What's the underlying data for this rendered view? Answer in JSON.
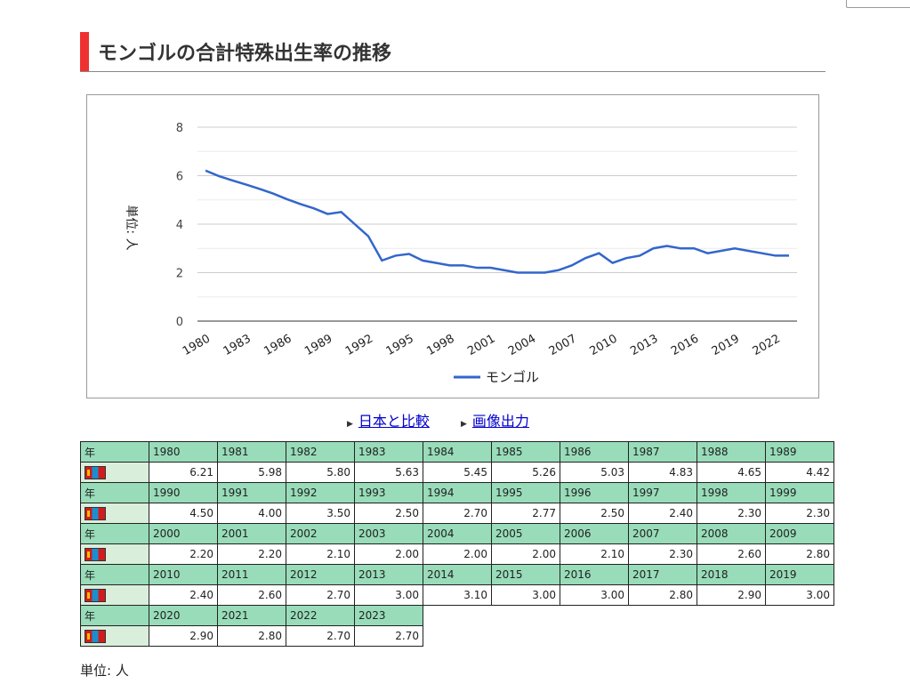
{
  "title": "モンゴルの合計特殊出生率の推移",
  "links": {
    "compare": "日本と比較",
    "export": "画像出力"
  },
  "table": {
    "year_label": "年",
    "country_icon": "mongolia-flag-icon"
  },
  "unit": "単位: 人",
  "colors": {
    "line": "#3366cc",
    "header": "#98dcb9",
    "accent": "#f03030"
  },
  "chart_data": {
    "type": "line",
    "title": "",
    "ylabel": "単位: 人",
    "xlabel": "",
    "ylim": [
      0,
      8
    ],
    "yticks": [
      "0",
      "2",
      "4",
      "6",
      "8"
    ],
    "xticks": [
      "1980",
      "1983",
      "1986",
      "1989",
      "1992",
      "1995",
      "1998",
      "2001",
      "2004",
      "2007",
      "2010",
      "2013",
      "2016",
      "2019",
      "2022"
    ],
    "legend": "bottom",
    "x": [
      1980,
      1981,
      1982,
      1983,
      1984,
      1985,
      1986,
      1987,
      1988,
      1989,
      1990,
      1991,
      1992,
      1993,
      1994,
      1995,
      1996,
      1997,
      1998,
      1999,
      2000,
      2001,
      2002,
      2003,
      2004,
      2005,
      2006,
      2007,
      2008,
      2009,
      2010,
      2011,
      2012,
      2013,
      2014,
      2015,
      2016,
      2017,
      2018,
      2019,
      2020,
      2021,
      2022,
      2023
    ],
    "series": [
      {
        "name": "モンゴル",
        "values": [
          "6.21",
          "5.98",
          "5.80",
          "5.63",
          "5.45",
          "5.26",
          "5.03",
          "4.83",
          "4.65",
          "4.42",
          "4.50",
          "4.00",
          "3.50",
          "2.50",
          "2.70",
          "2.77",
          "2.50",
          "2.40",
          "2.30",
          "2.30",
          "2.20",
          "2.20",
          "2.10",
          "2.00",
          "2.00",
          "2.00",
          "2.10",
          "2.30",
          "2.60",
          "2.80",
          "2.40",
          "2.60",
          "2.70",
          "3.00",
          "3.10",
          "3.00",
          "3.00",
          "2.80",
          "2.90",
          "3.00",
          "2.90",
          "2.80",
          "2.70",
          "2.70"
        ]
      }
    ]
  }
}
